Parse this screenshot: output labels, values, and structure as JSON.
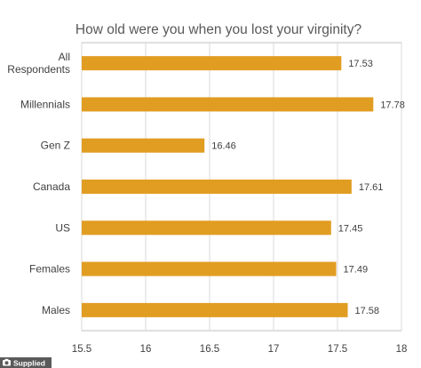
{
  "chart_data": {
    "type": "bar",
    "orientation": "horizontal",
    "title": "How old were you when you lost your virginity?",
    "categories": [
      "All Respondents",
      "Millennials",
      "Gen Z",
      "Canada",
      "US",
      "Females",
      "Males"
    ],
    "category_lines": [
      [
        "All",
        "Respondents"
      ],
      [
        "Millennials"
      ],
      [
        "Gen Z"
      ],
      [
        "Canada"
      ],
      [
        "US"
      ],
      [
        "Females"
      ],
      [
        "Males"
      ]
    ],
    "values": [
      17.53,
      17.78,
      16.46,
      17.61,
      17.45,
      17.49,
      17.58
    ],
    "value_labels": [
      "17.53",
      "17.78",
      "16.46",
      "17.61",
      "17.45",
      "17.49",
      "17.58"
    ],
    "xlim": [
      15.5,
      18
    ],
    "xticks": [
      15.5,
      16,
      16.5,
      17,
      17.5,
      18
    ],
    "xtick_labels": [
      "15.5",
      "16",
      "16.5",
      "17",
      "17.5",
      "18"
    ],
    "xlabel": "",
    "ylabel": "",
    "grid": true,
    "legend": "none",
    "bar_color": "#E19D22",
    "grid_color": "#D9D9D9",
    "frame_color": "#C0C0C0"
  },
  "credit": {
    "text": "Supplied",
    "icon": "camera-icon"
  }
}
